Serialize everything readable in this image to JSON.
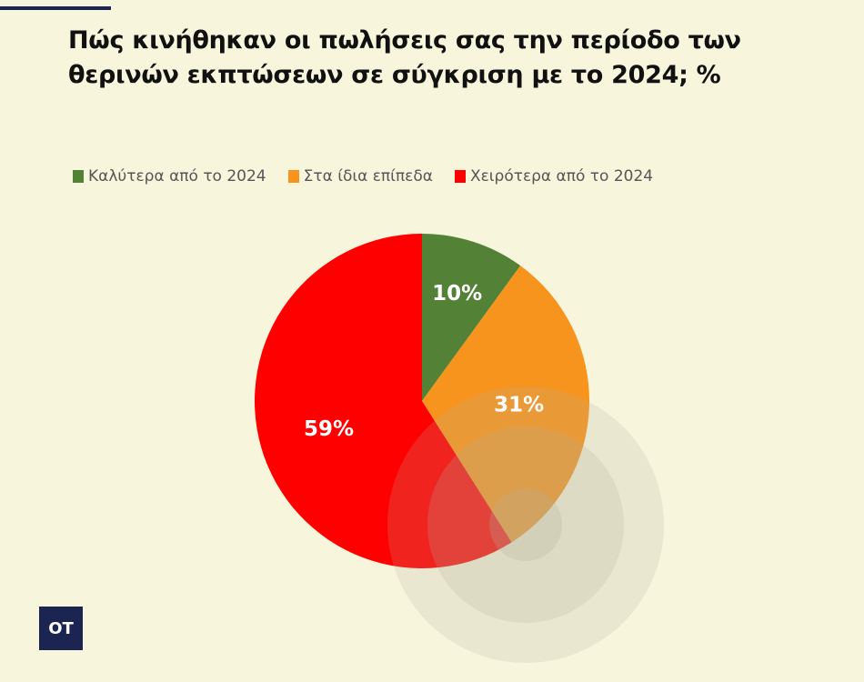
{
  "chart_data": {
    "type": "pie",
    "title": "Πώς κινήθηκαν οι πωλήσεις σας την περίοδο των θερινών εκπτώσεων σε σύγκριση με το 2024; %",
    "categories": [
      "Καλύτερα από το 2024",
      "Στα ίδια επίπεδα",
      "Χειρότερα από το 2024"
    ],
    "values": [
      10,
      31,
      59
    ],
    "value_labels": [
      "10%",
      "31%",
      "59%"
    ],
    "colors": [
      "#538135",
      "#f7941d",
      "#ff0000"
    ],
    "legend_position": "top-left"
  },
  "brand": {
    "logo_text": "ΟΤ",
    "accent": "#1c2452",
    "background": "#f7f5dc"
  }
}
